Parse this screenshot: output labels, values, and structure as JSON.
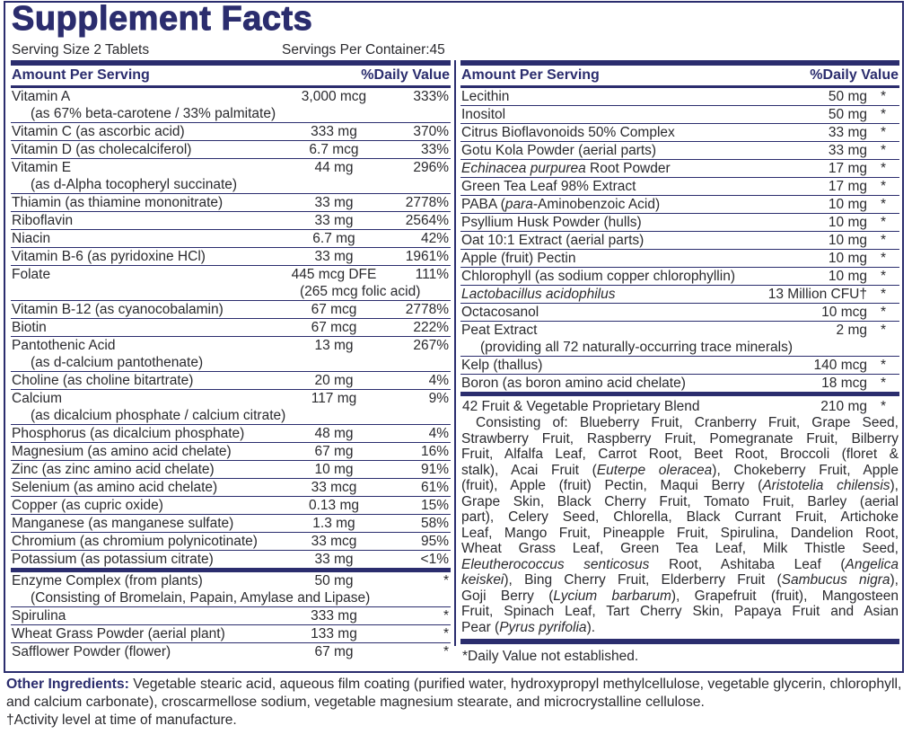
{
  "title": "Supplement Facts",
  "serving_size": "Serving Size 2 Tablets",
  "servings_per_container": "Servings Per Container:45",
  "header": {
    "amount": "Amount Per Serving",
    "dv": "%Daily Value"
  },
  "brand_color": "#2b2d6e",
  "left_items": [
    {
      "name": [
        {
          "t": "Vitamin A"
        }
      ],
      "amount": "3,000 mcg",
      "dv": "333%",
      "sub": "(as 67% beta-carotene / 33% palmitate)"
    },
    {
      "name": [
        {
          "t": "Vitamin C (as ascorbic acid)"
        }
      ],
      "amount": "333 mg",
      "dv": "370%"
    },
    {
      "name": [
        {
          "t": "Vitamin D (as cholecalciferol)"
        }
      ],
      "amount": "6.7 mcg",
      "dv": "33%"
    },
    {
      "name": [
        {
          "t": "Vitamin E"
        }
      ],
      "amount": "44 mg",
      "dv": "296%",
      "sub": "(as d-Alpha tocopheryl succinate)"
    },
    {
      "name": [
        {
          "t": "Thiamin (as thiamine mononitrate)"
        }
      ],
      "amount": "33 mg",
      "dv": "2778%"
    },
    {
      "name": [
        {
          "t": "Riboflavin"
        }
      ],
      "amount": "33 mg",
      "dv": "2564%"
    },
    {
      "name": [
        {
          "t": "Niacin"
        }
      ],
      "amount": "6.7 mg",
      "dv": "42%"
    },
    {
      "name": [
        {
          "t": "Vitamin B-6 (as pyridoxine HCl)"
        }
      ],
      "amount": "33 mg",
      "dv": "1961%"
    },
    {
      "name": [
        {
          "t": "Folate"
        }
      ],
      "amount": "445 mcg DFE",
      "dv": "111%",
      "sub": "(265 mcg folic acid)",
      "sub_under_amount": true
    },
    {
      "name": [
        {
          "t": "Vitamin B-12 (as cyanocobalamin)"
        }
      ],
      "amount": "67 mcg",
      "dv": "2778%"
    },
    {
      "name": [
        {
          "t": "Biotin"
        }
      ],
      "amount": "67 mcg",
      "dv": "222%"
    },
    {
      "name": [
        {
          "t": "Pantothenic Acid"
        }
      ],
      "amount": "13 mg",
      "dv": "267%",
      "sub": "(as d-calcium pantothenate)"
    },
    {
      "name": [
        {
          "t": "Choline (as choline bitartrate)"
        }
      ],
      "amount": "20 mg",
      "dv": "4%"
    },
    {
      "name": [
        {
          "t": "Calcium"
        }
      ],
      "amount": "117 mg",
      "dv": "9%",
      "sub": "(as dicalcium phosphate / calcium citrate)"
    },
    {
      "name": [
        {
          "t": "Phosphorus (as dicalcium phosphate)"
        }
      ],
      "amount": "48 mg",
      "dv": "4%"
    },
    {
      "name": [
        {
          "t": "Magnesium (as amino acid chelate)"
        }
      ],
      "amount": "67 mg",
      "dv": "16%"
    },
    {
      "name": [
        {
          "t": "Zinc (as zinc amino acid chelate)"
        }
      ],
      "amount": "10 mg",
      "dv": "91%"
    },
    {
      "name": [
        {
          "t": "Selenium (as amino acid chelate)"
        }
      ],
      "amount": "33 mcg",
      "dv": "61%"
    },
    {
      "name": [
        {
          "t": "Copper (as cupric oxide)"
        }
      ],
      "amount": "0.13 mg",
      "dv": "15%"
    },
    {
      "name": [
        {
          "t": "Manganese (as manganese sulfate)"
        }
      ],
      "amount": "1.3 mg",
      "dv": "58%"
    },
    {
      "name": [
        {
          "t": "Chromium (as chromium polynicotinate)"
        }
      ],
      "amount": "33 mcg",
      "dv": "95%"
    },
    {
      "name": [
        {
          "t": "Potassium (as potassium citrate)"
        }
      ],
      "amount": "33 mg",
      "dv": "<1%",
      "thick_after": true
    },
    {
      "name": [
        {
          "t": "Enzyme Complex (from plants)"
        }
      ],
      "amount": "50 mg",
      "dv": "*",
      "sub": "(Consisting of Bromelain, Papain, Amylase and Lipase)"
    },
    {
      "name": [
        {
          "t": "Spirulina"
        }
      ],
      "amount": "333 mg",
      "dv": "*"
    },
    {
      "name": [
        {
          "t": "Wheat Grass Powder (aerial plant)"
        }
      ],
      "amount": "133 mg",
      "dv": "*"
    },
    {
      "name": [
        {
          "t": "Safflower Powder (flower)"
        }
      ],
      "amount": "67 mg",
      "dv": "*",
      "last": true
    }
  ],
  "right_items": [
    {
      "name": [
        {
          "t": "Lecithin"
        }
      ],
      "amount": "50 mg",
      "dv": "*"
    },
    {
      "name": [
        {
          "t": "Inositol"
        }
      ],
      "amount": "50 mg",
      "dv": "*"
    },
    {
      "name": [
        {
          "t": "Citrus Bioflavonoids 50% Complex"
        }
      ],
      "amount": "33 mg",
      "dv": "*"
    },
    {
      "name": [
        {
          "t": "Gotu Kola Powder (aerial parts)"
        }
      ],
      "amount": "33 mg",
      "dv": "*"
    },
    {
      "name": [
        {
          "t": "Echinacea purpurea",
          "i": true
        },
        {
          "t": " Root Powder"
        }
      ],
      "amount": "17 mg",
      "dv": "*"
    },
    {
      "name": [
        {
          "t": "Green Tea Leaf 98% Extract"
        }
      ],
      "amount": "17 mg",
      "dv": "*"
    },
    {
      "name": [
        {
          "t": "PABA ("
        },
        {
          "t": "para",
          "i": true
        },
        {
          "t": "-Aminobenzoic Acid)"
        }
      ],
      "amount": "10 mg",
      "dv": "*"
    },
    {
      "name": [
        {
          "t": "Psyllium Husk Powder (hulls)"
        }
      ],
      "amount": "10 mg",
      "dv": "*"
    },
    {
      "name": [
        {
          "t": "Oat 10:1 Extract (aerial parts)"
        }
      ],
      "amount": "10 mg",
      "dv": "*"
    },
    {
      "name": [
        {
          "t": "Apple (fruit) Pectin"
        }
      ],
      "amount": "10 mg",
      "dv": "*"
    },
    {
      "name": [
        {
          "t": "Chlorophyll (as sodium copper chlorophyllin)"
        }
      ],
      "amount": "10 mg",
      "dv": "*"
    },
    {
      "name": [
        {
          "t": "Lactobacillus acidophilus",
          "i": true
        }
      ],
      "amount": "13 Million CFU†",
      "dv": "*"
    },
    {
      "name": [
        {
          "t": "Octacosanol"
        }
      ],
      "amount": "10 mcg",
      "dv": "*"
    },
    {
      "name": [
        {
          "t": "Peat Extract"
        }
      ],
      "amount": "2 mg",
      "dv": "*",
      "sub": "(providing all 72 naturally-occurring trace minerals)"
    },
    {
      "name": [
        {
          "t": "Kelp (thallus)"
        }
      ],
      "amount": "140 mcg",
      "dv": "*"
    },
    {
      "name": [
        {
          "t": "Boron (as boron amino acid chelate)"
        }
      ],
      "amount": "18 mcg",
      "dv": "*",
      "thick_after": true
    }
  ],
  "blend": {
    "name": "42 Fruit & Vegetable Proprietary Blend",
    "amount": "210 mg",
    "dv": "*",
    "lines": [
      [
        {
          "t": "Consisting of: Blueberry Fruit, Cranberry Fruit, Grape Seed,"
        }
      ],
      [
        {
          "t": "Strawberry Fruit, Raspberry Fruit, Pomegranate Fruit, Bilberry"
        }
      ],
      [
        {
          "t": "Fruit, Alfalfa Leaf, Carrot Root, Beet Root, Broccoli (floret &"
        }
      ],
      [
        {
          "t": "stalk), Acai Fruit ("
        },
        {
          "t": "Euterpe oleracea",
          "i": true
        },
        {
          "t": "), Chokeberry Fruit, Apple"
        }
      ],
      [
        {
          "t": "(fruit), Apple (fruit) Pectin, Maqui Berry ("
        },
        {
          "t": "Aristotelia chilensis",
          "i": true
        },
        {
          "t": "),"
        }
      ],
      [
        {
          "t": "Grape Skin, Black Cherry Fruit, Tomato Fruit, Barley (aerial"
        }
      ],
      [
        {
          "t": "part), Celery Seed, Chlorella, Black Currant Fruit, Artichoke"
        }
      ],
      [
        {
          "t": "Leaf, Mango Fruit, Pineapple Fruit, Spirulina, Dandelion Root,"
        }
      ],
      [
        {
          "t": "Wheat Grass Leaf, Green Tea Leaf, Milk Thistle Seed,"
        }
      ],
      [
        {
          "t": "Eleutherococcus senticosus",
          "i": true
        },
        {
          "t": " Root, Ashitaba Leaf ("
        },
        {
          "t": "Angelica",
          "i": true
        }
      ],
      [
        {
          "t": "keiskei",
          "i": true
        },
        {
          "t": "), Bing Cherry Fruit, Elderberry Fruit ("
        },
        {
          "t": "Sambucus nigra",
          "i": true
        },
        {
          "t": "),"
        }
      ],
      [
        {
          "t": "Goji Berry ("
        },
        {
          "t": "Lycium barbarum",
          "i": true
        },
        {
          "t": "), Grapefruit (fruit), Mangosteen"
        }
      ],
      [
        {
          "t": "Fruit, Spinach Leaf, Tart Cherry Skin, Papaya Fruit and Asian"
        }
      ],
      [
        {
          "t": "Pear ("
        },
        {
          "t": "Pyrus pyrifolia",
          "i": true
        },
        {
          "t": ")."
        }
      ]
    ]
  },
  "dv_footnote": "*Daily Value not established.",
  "other_ingredients": {
    "label": "Other Ingredients:",
    "text": " Vegetable stearic acid, aqueous film coating (purified water, hydroxypropyl methylcellulose, vegetable glycerin, chlorophyll, and calcium carbonate), croscarmellose sodium, vegetable magnesium stearate, and microcrystalline cellulose."
  },
  "activity_note": "†Activity level at time of manufacture."
}
